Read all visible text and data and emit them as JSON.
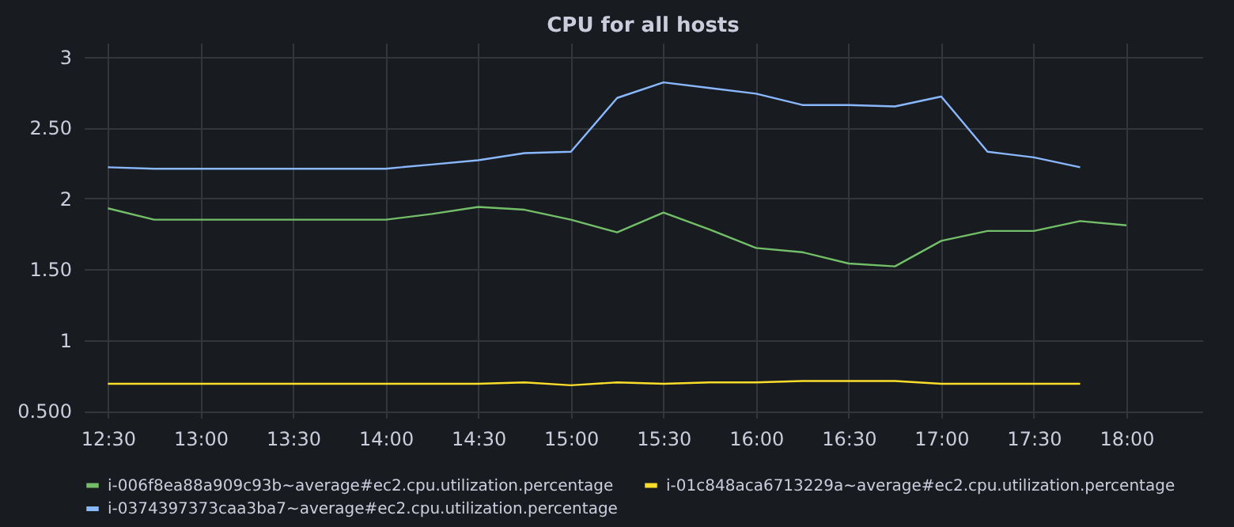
{
  "chart_data": {
    "type": "line",
    "title": "CPU for all hosts",
    "x": [
      12.5,
      12.75,
      13,
      13.25,
      13.5,
      13.75,
      14,
      14.25,
      14.5,
      14.75,
      15,
      15.25,
      15.5,
      15.75,
      16,
      16.25,
      16.5,
      16.75,
      17,
      17.25,
      17.5,
      17.75,
      18
    ],
    "series": [
      {
        "name": "i-006f8ea88a909c93b~average#ec2.cpu.utilization.percentage",
        "color": "#73bf69",
        "values": [
          1.93,
          1.85,
          1.85,
          1.85,
          1.85,
          1.85,
          1.85,
          1.89,
          1.94,
          1.92,
          1.85,
          1.76,
          1.9,
          1.78,
          1.65,
          1.62,
          1.54,
          1.52,
          1.7,
          1.77,
          1.77,
          1.84,
          1.81
        ]
      },
      {
        "name": "i-01c848aca6713229a~average#ec2.cpu.utilization.percentage",
        "color": "#fade2a",
        "values": [
          0.69,
          0.69,
          0.69,
          0.69,
          0.69,
          0.69,
          0.69,
          0.69,
          0.69,
          0.7,
          0.68,
          0.7,
          0.69,
          0.7,
          0.7,
          0.71,
          0.71,
          0.71,
          0.69,
          0.69,
          0.69,
          0.69,
          null
        ]
      },
      {
        "name": "i-0374397373caa3ba7~average#ec2.cpu.utilization.percentage",
        "color": "#8ab8ff",
        "values": [
          2.22,
          2.21,
          2.21,
          2.21,
          2.21,
          2.21,
          2.21,
          2.24,
          2.27,
          2.32,
          2.33,
          2.71,
          2.82,
          2.78,
          2.74,
          2.66,
          2.66,
          2.65,
          2.72,
          2.33,
          2.29,
          2.22,
          null
        ]
      }
    ],
    "xlim": [
      12.37,
      18.41
    ],
    "xticks": [
      {
        "value": 12.5,
        "label": "12:30"
      },
      {
        "value": 13,
        "label": "13:00"
      },
      {
        "value": 13.5,
        "label": "13:30"
      },
      {
        "value": 14,
        "label": "14:00"
      },
      {
        "value": 14.5,
        "label": "14:30"
      },
      {
        "value": 15,
        "label": "15:00"
      },
      {
        "value": 15.5,
        "label": "15:30"
      },
      {
        "value": 16,
        "label": "16:00"
      },
      {
        "value": 16.5,
        "label": "16:30"
      },
      {
        "value": 17,
        "label": "17:00"
      },
      {
        "value": 17.5,
        "label": "17:30"
      },
      {
        "value": 18,
        "label": "18:00"
      }
    ],
    "ylim": [
      0.45,
      3.1
    ],
    "yticks": [
      {
        "value": 0.5,
        "label": "0.500"
      },
      1,
      {
        "value": 1.5,
        "label": "1.50"
      },
      2,
      {
        "value": 2.5,
        "label": "2.50"
      },
      3
    ],
    "grid": true,
    "legend": "bottom",
    "marker": "none",
    "line_style": "solid"
  }
}
